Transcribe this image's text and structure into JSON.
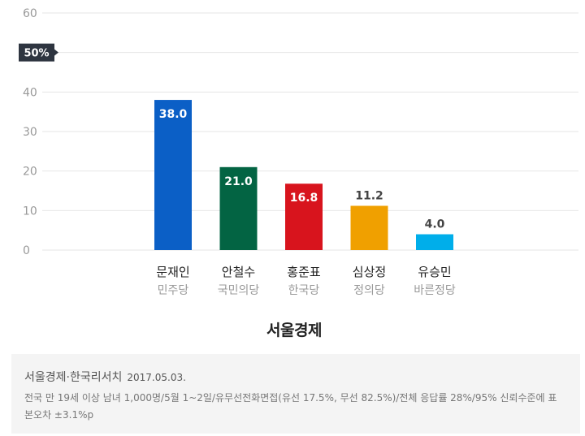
{
  "chart_data": {
    "type": "bar",
    "categories": [
      "문재인",
      "안철수",
      "홍준표",
      "심상정",
      "유승민"
    ],
    "category_sublabels": [
      "민주당",
      "국민의당",
      "한국당",
      "정의당",
      "바른정당"
    ],
    "values": [
      38.0,
      21.0,
      16.8,
      11.2,
      4.0
    ],
    "value_labels": [
      "38.0",
      "21.0",
      "16.8",
      "11.2",
      "4.0"
    ],
    "colors": [
      "#0b5fc6",
      "#036443",
      "#d8141d",
      "#f0a000",
      "#00aeea"
    ],
    "ylim": [
      0,
      60
    ],
    "yticks": [
      "0",
      "10",
      "20",
      "30",
      "40",
      "50%",
      "60"
    ],
    "highlight_tick": "50%",
    "grid": true,
    "source_title": "서울경제"
  },
  "footer": {
    "source": "서울경제·한국리서치",
    "date": "2017.05.03.",
    "note": "전국 만 19세 이상 남녀 1,000명/5월 1~2일/유무선전화면접(유선 17.5%, 무선 82.5%)/전체 응답률 28%/95% 신뢰수준에 표본오차 ±3.1%p"
  }
}
